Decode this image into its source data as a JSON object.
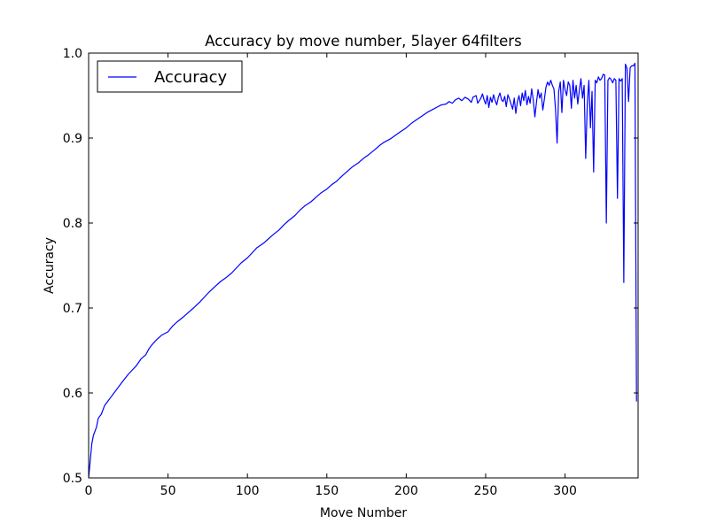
{
  "chart_data": {
    "type": "line",
    "title": "Accuracy by move number, 5layer 64filters",
    "xlabel": "Move Number",
    "ylabel": "Accuracy",
    "xlim": [
      0,
      346
    ],
    "ylim": [
      0.5,
      1.0
    ],
    "xticks": [
      "0",
      "50",
      "100",
      "150",
      "200",
      "250",
      "300"
    ],
    "yticks": [
      "0.5",
      "0.6",
      "0.7",
      "0.8",
      "0.9",
      "1.0"
    ],
    "legend": {
      "position": "top-left"
    },
    "grid": false,
    "series": [
      {
        "name": "Accuracy",
        "color": "#0000ff",
        "points": [
          [
            0,
            0.5
          ],
          [
            1,
            0.52
          ],
          [
            2,
            0.54
          ],
          [
            3,
            0.55
          ],
          [
            5,
            0.56
          ],
          [
            6,
            0.57
          ],
          [
            8,
            0.575
          ],
          [
            10,
            0.585
          ],
          [
            12,
            0.59
          ],
          [
            14,
            0.595
          ],
          [
            16,
            0.6
          ],
          [
            18,
            0.605
          ],
          [
            20,
            0.61
          ],
          [
            22,
            0.615
          ],
          [
            25,
            0.622
          ],
          [
            28,
            0.628
          ],
          [
            30,
            0.632
          ],
          [
            33,
            0.64
          ],
          [
            36,
            0.645
          ],
          [
            38,
            0.652
          ],
          [
            40,
            0.657
          ],
          [
            43,
            0.663
          ],
          [
            46,
            0.668
          ],
          [
            50,
            0.672
          ],
          [
            53,
            0.679
          ],
          [
            56,
            0.684
          ],
          [
            60,
            0.69
          ],
          [
            63,
            0.695
          ],
          [
            66,
            0.7
          ],
          [
            70,
            0.707
          ],
          [
            73,
            0.713
          ],
          [
            76,
            0.719
          ],
          [
            80,
            0.726
          ],
          [
            83,
            0.731
          ],
          [
            86,
            0.735
          ],
          [
            90,
            0.741
          ],
          [
            93,
            0.747
          ],
          [
            96,
            0.753
          ],
          [
            100,
            0.759
          ],
          [
            103,
            0.765
          ],
          [
            106,
            0.771
          ],
          [
            110,
            0.776
          ],
          [
            113,
            0.781
          ],
          [
            116,
            0.786
          ],
          [
            120,
            0.792
          ],
          [
            123,
            0.798
          ],
          [
            126,
            0.803
          ],
          [
            130,
            0.809
          ],
          [
            133,
            0.815
          ],
          [
            136,
            0.82
          ],
          [
            140,
            0.825
          ],
          [
            143,
            0.83
          ],
          [
            146,
            0.835
          ],
          [
            150,
            0.84
          ],
          [
            153,
            0.845
          ],
          [
            156,
            0.849
          ],
          [
            160,
            0.856
          ],
          [
            163,
            0.861
          ],
          [
            166,
            0.866
          ],
          [
            170,
            0.871
          ],
          [
            173,
            0.876
          ],
          [
            176,
            0.88
          ],
          [
            180,
            0.886
          ],
          [
            183,
            0.891
          ],
          [
            186,
            0.895
          ],
          [
            190,
            0.899
          ],
          [
            193,
            0.903
          ],
          [
            196,
            0.907
          ],
          [
            200,
            0.912
          ],
          [
            203,
            0.917
          ],
          [
            206,
            0.921
          ],
          [
            210,
            0.926
          ],
          [
            213,
            0.93
          ],
          [
            216,
            0.933
          ],
          [
            220,
            0.937
          ],
          [
            222,
            0.939
          ],
          [
            225,
            0.94
          ],
          [
            227,
            0.943
          ],
          [
            229,
            0.941
          ],
          [
            231,
            0.945
          ],
          [
            233,
            0.947
          ],
          [
            235,
            0.944
          ],
          [
            237,
            0.948
          ],
          [
            239,
            0.946
          ],
          [
            241,
            0.942
          ],
          [
            242,
            0.948
          ],
          [
            244,
            0.95
          ],
          [
            245,
            0.941
          ],
          [
            247,
            0.947
          ],
          [
            248,
            0.952
          ],
          [
            249,
            0.945
          ],
          [
            250,
            0.94
          ],
          [
            251,
            0.95
          ],
          [
            252,
            0.936
          ],
          [
            253,
            0.948
          ],
          [
            254,
            0.942
          ],
          [
            255,
            0.951
          ],
          [
            256,
            0.944
          ],
          [
            257,
            0.939
          ],
          [
            258,
            0.948
          ],
          [
            259,
            0.953
          ],
          [
            260,
            0.945
          ],
          [
            261,
            0.943
          ],
          [
            262,
            0.949
          ],
          [
            263,
            0.937
          ],
          [
            264,
            0.951
          ],
          [
            265,
            0.946
          ],
          [
            266,
            0.94
          ],
          [
            267,
            0.934
          ],
          [
            268,
            0.947
          ],
          [
            269,
            0.929
          ],
          [
            270,
            0.943
          ],
          [
            271,
            0.95
          ],
          [
            272,
            0.938
          ],
          [
            273,
            0.953
          ],
          [
            274,
            0.944
          ],
          [
            275,
            0.956
          ],
          [
            276,
            0.939
          ],
          [
            277,
            0.949
          ],
          [
            278,
            0.941
          ],
          [
            279,
            0.958
          ],
          [
            280,
            0.945
          ],
          [
            281,
            0.925
          ],
          [
            282,
            0.942
          ],
          [
            283,
            0.957
          ],
          [
            284,
            0.947
          ],
          [
            285,
            0.953
          ],
          [
            286,
            0.933
          ],
          [
            287,
            0.946
          ],
          [
            288,
            0.96
          ],
          [
            289,
            0.966
          ],
          [
            290,
            0.962
          ],
          [
            291,
            0.968
          ],
          [
            292,
            0.962
          ],
          [
            293,
            0.958
          ],
          [
            294,
            0.934
          ],
          [
            295,
            0.894
          ],
          [
            296,
            0.955
          ],
          [
            297,
            0.966
          ],
          [
            298,
            0.93
          ],
          [
            299,
            0.968
          ],
          [
            300,
            0.957
          ],
          [
            301,
            0.95
          ],
          [
            302,
            0.966
          ],
          [
            303,
            0.962
          ],
          [
            304,
            0.935
          ],
          [
            305,
            0.968
          ],
          [
            306,
            0.947
          ],
          [
            307,
            0.962
          ],
          [
            308,
            0.94
          ],
          [
            309,
            0.956
          ],
          [
            310,
            0.97
          ],
          [
            311,
            0.947
          ],
          [
            312,
            0.962
          ],
          [
            313,
            0.876
          ],
          [
            314,
            0.94
          ],
          [
            315,
            0.968
          ],
          [
            316,
            0.912
          ],
          [
            317,
            0.955
          ],
          [
            318,
            0.86
          ],
          [
            319,
            0.968
          ],
          [
            320,
            0.965
          ],
          [
            321,
            0.972
          ],
          [
            322,
            0.968
          ],
          [
            323,
            0.97
          ],
          [
            324,
            0.975
          ],
          [
            325,
            0.974
          ],
          [
            326,
            0.8
          ],
          [
            327,
            0.968
          ],
          [
            328,
            0.971
          ],
          [
            329,
            0.969
          ],
          [
            330,
            0.965
          ],
          [
            331,
            0.97
          ],
          [
            332,
            0.968
          ],
          [
            333,
            0.829
          ],
          [
            334,
            0.97
          ],
          [
            335,
            0.967
          ],
          [
            336,
            0.97
          ],
          [
            337,
            0.73
          ],
          [
            338,
            0.987
          ],
          [
            339,
            0.982
          ],
          [
            340,
            0.943
          ],
          [
            341,
            0.983
          ],
          [
            342,
            0.985
          ],
          [
            343,
            0.985
          ],
          [
            344,
            0.988
          ],
          [
            345,
            0.59
          ]
        ]
      }
    ]
  }
}
